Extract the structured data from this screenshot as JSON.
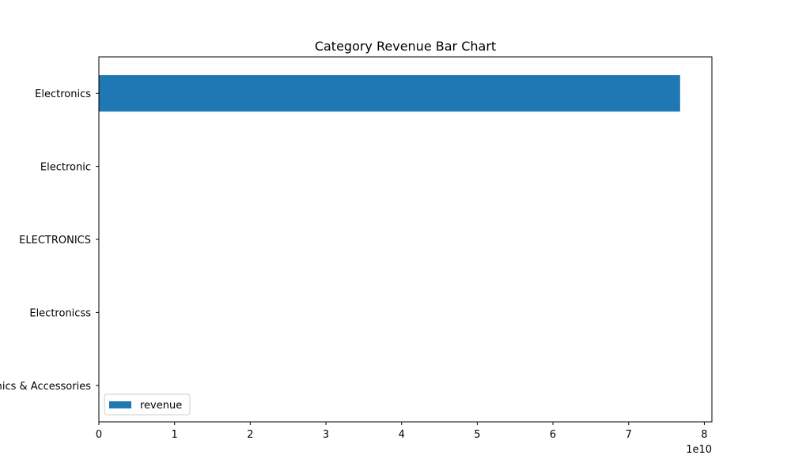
{
  "chart_data": {
    "type": "bar",
    "orientation": "horizontal",
    "title": "Category Revenue Bar Chart",
    "xlabel": "",
    "ylabel": "",
    "categories": [
      "Electronics",
      "Electronic",
      "ELECTRONICS",
      "Electronicss",
      "Electronics & Accessories"
    ],
    "series": [
      {
        "name": "revenue",
        "values": [
          76800000000,
          0,
          0,
          0,
          0
        ],
        "color": "#1f77b4"
      }
    ],
    "xlim": [
      0,
      81000000000
    ],
    "xticks": [
      0,
      10000000000,
      20000000000,
      30000000000,
      40000000000,
      50000000000,
      60000000000,
      70000000000,
      80000000000
    ],
    "xtick_labels": [
      "0",
      "1",
      "2",
      "3",
      "4",
      "5",
      "6",
      "7",
      "8"
    ],
    "x_offset_label": "1e10",
    "grid": false,
    "legend_position": "lower-left"
  }
}
